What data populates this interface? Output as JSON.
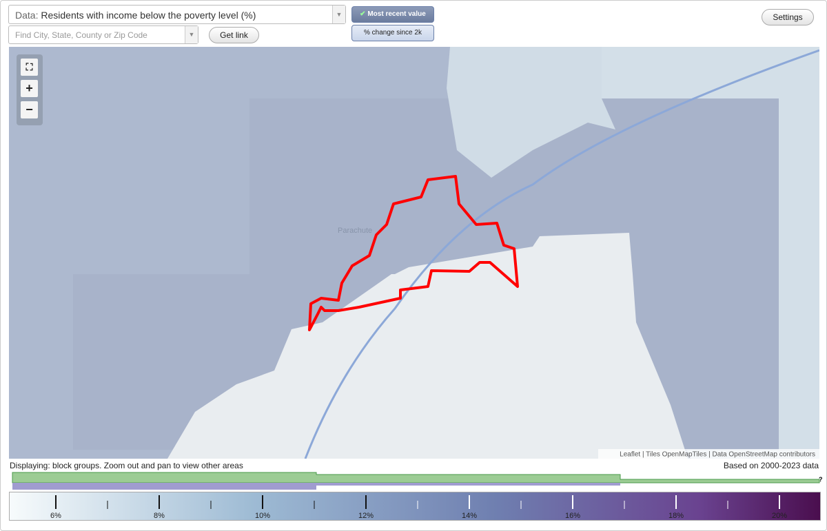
{
  "controls": {
    "data_label": "Data:",
    "data_select": "Residents with income below the poverty level (%)",
    "search_placeholder": "Find City, State, County or Zip Code",
    "get_link": "Get link",
    "most_recent": "Most recent value",
    "pct_change": "% change since 2k",
    "settings": "Settings"
  },
  "map": {
    "place_label": "Parachute",
    "attribution": "Leaflet | Tiles OpenMapTiles | Data OpenStreetMap contributors"
  },
  "status": {
    "displaying": "Displaying: block groups. Zoom out and pan to view other areas",
    "based_on": "Based on 2000-2023 data",
    "help": "?"
  },
  "legend": {
    "labels": [
      "6%",
      "8%",
      "10%",
      "12%",
      "14%",
      "16%",
      "18%",
      "20%"
    ]
  }
}
